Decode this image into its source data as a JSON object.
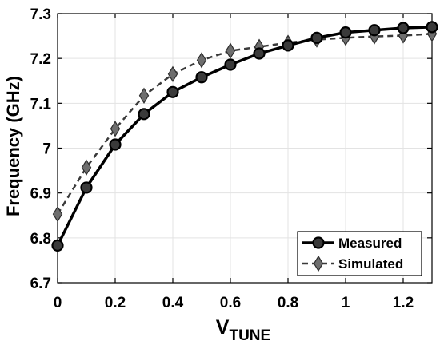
{
  "chart_data": {
    "type": "line",
    "xlabel_main": "V",
    "xlabel_sub": "TUNE",
    "ylabel": "Frequency (GHz)",
    "xlim": [
      0,
      1.3
    ],
    "ylim": [
      6.7,
      7.3
    ],
    "xticks": [
      0,
      0.2,
      0.4,
      0.6,
      0.8,
      1,
      1.2
    ],
    "xtick_labels": [
      "0",
      "0.2",
      "0.4",
      "0.6",
      "0.8",
      "1",
      "1.2"
    ],
    "yticks": [
      6.7,
      6.8,
      6.9,
      7.0,
      7.1,
      7.2,
      7.3
    ],
    "ytick_labels": [
      "6.7",
      "6.8",
      "6.9",
      "7",
      "7.1",
      "7.2",
      "7.3"
    ],
    "grid": true,
    "legend_position": "bottom-right",
    "x": [
      0,
      0.1,
      0.2,
      0.3,
      0.4,
      0.5,
      0.6,
      0.7,
      0.8,
      0.9,
      1.0,
      1.1,
      1.2,
      1.3
    ],
    "series": [
      {
        "name": "Measured",
        "style": "solid",
        "marker": "circle",
        "color": "#000000",
        "marker_fill": "#3a3a3a",
        "values": [
          6.783,
          6.912,
          7.008,
          7.076,
          7.125,
          7.158,
          7.186,
          7.211,
          7.229,
          7.246,
          7.258,
          7.263,
          7.268,
          7.27
        ]
      },
      {
        "name": "Simulated",
        "style": "dashed",
        "marker": "diamond",
        "color": "#3a3a3a",
        "marker_fill": "#6e6e6e",
        "values": [
          6.853,
          6.957,
          7.043,
          7.117,
          7.165,
          7.196,
          7.217,
          7.226,
          7.235,
          7.242,
          7.246,
          7.249,
          7.251,
          7.255
        ]
      }
    ]
  }
}
